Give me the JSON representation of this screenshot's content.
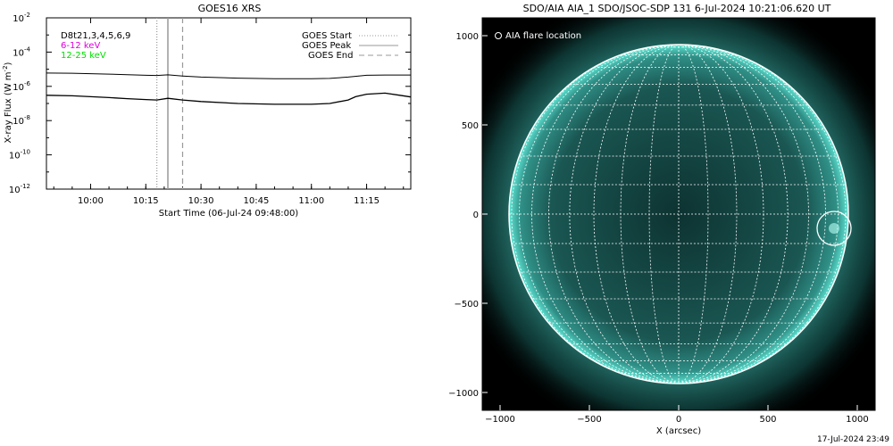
{
  "goes_panel": {
    "title": "GOES16 XRS",
    "ylabel_main": "X-ray Flux (W m",
    "ylabel_sup": "-2",
    "ylabel_close": ")",
    "xlabel": "Start Time (06-Jul-24 09:48:00)",
    "legend_left": [
      {
        "text": "D8t21,3,4,5,6,9",
        "color": "#000000"
      },
      {
        "text": "6-12 keV",
        "color": "#e000e0"
      },
      {
        "text": "12-25 keV",
        "color": "#00dd00"
      }
    ],
    "legend_right": [
      {
        "text": "GOES Start",
        "style": "dotted"
      },
      {
        "text": "GOES Peak",
        "style": "solid"
      },
      {
        "text": "GOES End",
        "style": "dashed"
      }
    ]
  },
  "aia_panel": {
    "title": "SDO/AIA AIA_1 SDO/JSOC-SDP 131  6-Jul-2024 10:21:06.620 UT",
    "annotation": "AIA flare location",
    "xlabel": "X (arcsec)",
    "disk_color": "#4fd6c8",
    "background_color": "#000000"
  },
  "footer_timestamp": "17-Jul-2024 23:49",
  "chart_data": [
    {
      "type": "line",
      "title": "GOES16 XRS",
      "xlabel": "Start Time (06-Jul-24 09:48:00)",
      "ylabel": "X-ray Flux (W m^-2)",
      "yscale": "log",
      "xlim": [
        "09:48",
        "11:27"
      ],
      "ylim": [
        1e-12,
        0.01
      ],
      "x_ticks": [
        "10:00",
        "10:15",
        "10:30",
        "10:45",
        "11:00",
        "11:15"
      ],
      "y_ticks": [
        {
          "base": "10",
          "exp": "-2",
          "value": 0.01
        },
        {
          "base": "10",
          "exp": "-4",
          "value": 0.0001
        },
        {
          "base": "10",
          "exp": "-6",
          "value": 1e-06
        },
        {
          "base": "10",
          "exp": "-8",
          "value": 1e-08
        },
        {
          "base": "10",
          "exp": "-10",
          "value": 1e-10
        },
        {
          "base": "10",
          "exp": "-12",
          "value": 1e-12
        }
      ],
      "markers": {
        "goes_start": "10:18",
        "goes_peak": "10:21",
        "goes_end": "10:25"
      },
      "series": [
        {
          "name": "",
          "x": [
            "09:48",
            "09:55",
            "10:00",
            "10:05",
            "10:10",
            "10:15",
            "10:18",
            "10:21",
            "10:25",
            "10:30",
            "10:40",
            "10:50",
            "11:00",
            "11:05",
            "11:10",
            "11:15",
            "11:20",
            "11:27"
          ],
          "y": [
            6e-06,
            5.8e-06,
            5.5e-06,
            5.2e-06,
            4.8e-06,
            4.4e-06,
            4.3e-06,
            4.7e-06,
            4e-06,
            3.5e-06,
            3e-06,
            2.8e-06,
            2.8e-06,
            2.9e-06,
            3.5e-06,
            4.4e-06,
            4.6e-06,
            4.6e-06
          ]
        },
        {
          "name": "",
          "x": [
            "09:48",
            "09:55",
            "10:00",
            "10:05",
            "10:10",
            "10:15",
            "10:18",
            "10:21",
            "10:25",
            "10:30",
            "10:40",
            "10:50",
            "11:00",
            "11:05",
            "11:10",
            "11:12",
            "11:15",
            "11:20",
            "11:24",
            "11:27"
          ],
          "y": [
            3e-07,
            2.8e-07,
            2.5e-07,
            2.2e-07,
            1.9e-07,
            1.7e-07,
            1.6e-07,
            2e-07,
            1.6e-07,
            1.3e-07,
            1e-07,
            9e-08,
            9e-08,
            1e-07,
            1.6e-07,
            2.5e-07,
            3.5e-07,
            4e-07,
            3e-07,
            2.4e-07
          ]
        }
      ]
    },
    {
      "type": "scatter",
      "title": "SDO/AIA AIA_1 SDO/JSOC-SDP 131  6-Jul-2024 10:21:06.620 UT",
      "xlabel": "X (arcsec)",
      "ylabel": "",
      "xlim": [
        -1100,
        1100
      ],
      "ylim": [
        -1100,
        1100
      ],
      "x_ticks": [
        -1000,
        -500,
        0,
        500,
        1000
      ],
      "y_ticks": [
        1000,
        500,
        0,
        -500,
        -1000
      ],
      "solar_radius_arcsec": 950,
      "grid_spacing_deg": 10,
      "series": [
        {
          "name": "AIA flare location",
          "x": [
            870
          ],
          "y": [
            -80
          ]
        }
      ]
    }
  ]
}
